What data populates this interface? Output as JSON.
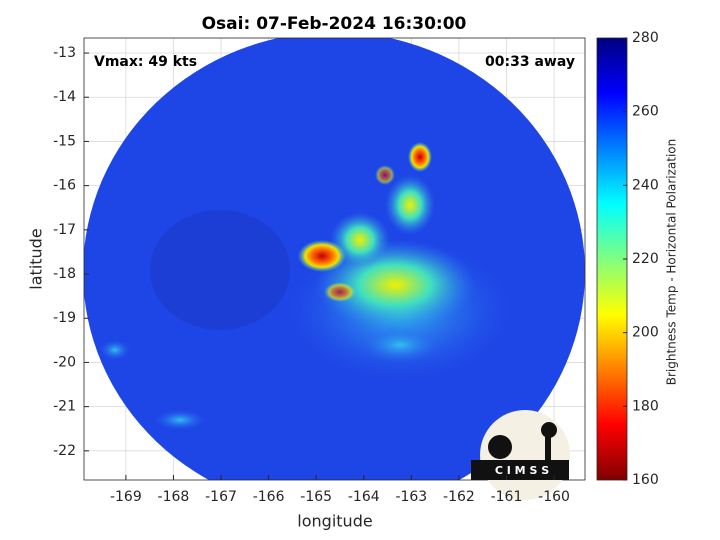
{
  "chart_data": {
    "type": "heatmap",
    "title": "Osai: 07-Feb-2024 16:30:00",
    "xlabel": "longitude",
    "ylabel": "latitude",
    "xlim": [
      -169.88,
      -159.35
    ],
    "ylim": [
      -22.66,
      -12.66
    ],
    "xticks": [
      -169,
      -168,
      -167,
      -166,
      -165,
      -164,
      -163,
      -162,
      -161,
      -160
    ],
    "yticks": [
      -13,
      -14,
      -15,
      -16,
      -17,
      -18,
      -19,
      -20,
      -21,
      -22
    ],
    "grid": true,
    "annotations": [
      "Vmax: 49 kts",
      "00:33 away"
    ],
    "logo": "C I M S S",
    "colorbar": {
      "label": "Brightness Temp - Horizontal Polarization",
      "lim": [
        160,
        280
      ],
      "ticks": [
        160,
        180,
        200,
        220,
        240,
        260,
        280
      ],
      "colormap": "jet"
    }
  }
}
